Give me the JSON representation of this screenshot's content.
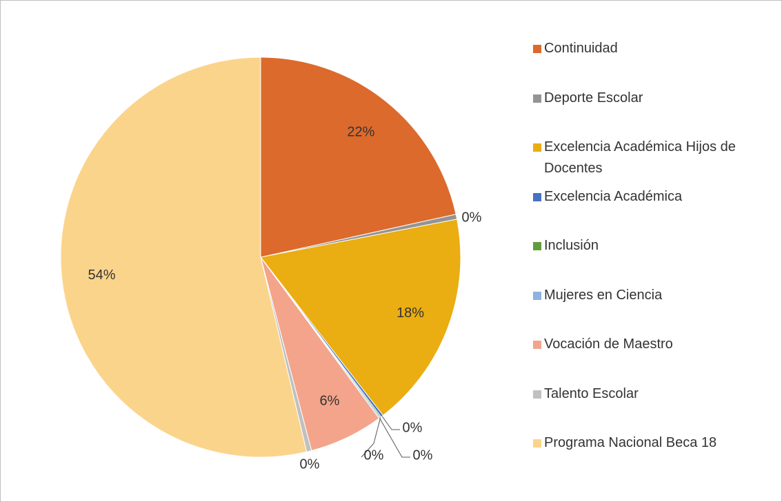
{
  "chart_data": {
    "type": "pie",
    "categories": [
      "Continuidad",
      "Deporte Escolar",
      "Excelencia Académica Hijos de Docentes",
      "Excelencia Académica",
      "Inclusión",
      "Mujeres en Ciencia",
      "Vocación de Maestro",
      "Talento Escolar",
      "Programa Nacional Beca 18"
    ],
    "values": [
      21.6,
      0.4,
      17.6,
      0.2,
      0.1,
      0.1,
      6.0,
      0.4,
      53.8
    ],
    "value_labels": [
      "22%",
      "0%",
      "18%",
      "0%",
      "0%",
      "0%",
      "6%",
      "0%",
      "54%"
    ],
    "colors": [
      "#dc6a2c",
      "#949494",
      "#eaad12",
      "#4472c4",
      "#5f9e3a",
      "#8db3e2",
      "#f3a48b",
      "#c0c0c0",
      "#fbd48b"
    ],
    "legend": "right"
  }
}
